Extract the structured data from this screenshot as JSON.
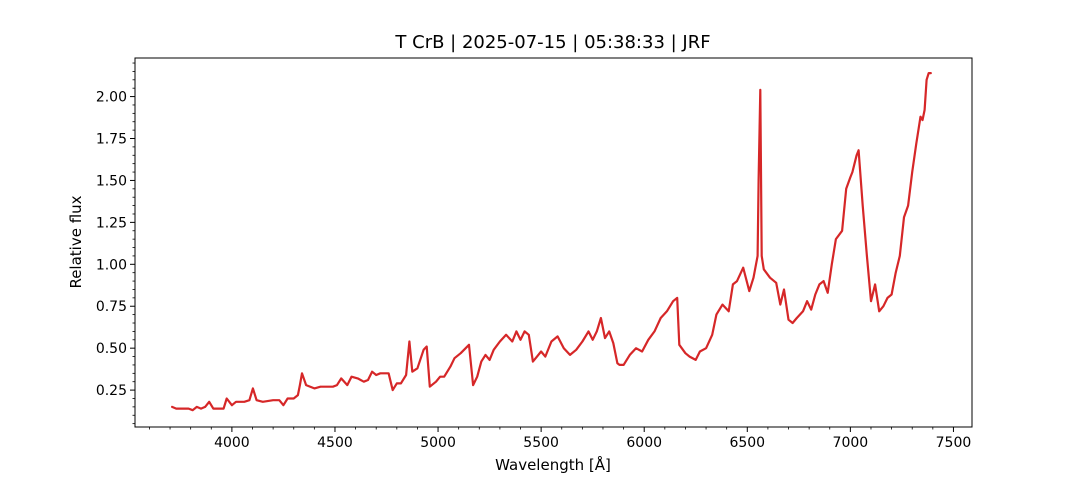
{
  "chart_data": {
    "type": "line",
    "title": "T CrB | 2025-07-15 | 05:38:33 | JRF",
    "xlabel": "Wavelength [Å]",
    "ylabel": "Relative flux",
    "xlim": [
      3530,
      7590
    ],
    "ylim": [
      0.03,
      2.23
    ],
    "x_ticks": [
      4000,
      4500,
      5000,
      5500,
      6000,
      6500,
      7000,
      7500
    ],
    "x_tick_labels": [
      "4000",
      "4500",
      "5000",
      "5500",
      "6000",
      "6500",
      "7000",
      "7500"
    ],
    "y_ticks": [
      0.25,
      0.5,
      0.75,
      1.0,
      1.25,
      1.5,
      1.75,
      2.0
    ],
    "y_tick_labels": [
      "0.25",
      "0.50",
      "0.75",
      "1.00",
      "1.25",
      "1.50",
      "1.75",
      "2.00"
    ],
    "grid": false,
    "series": [
      {
        "color": "#d62728",
        "x": [
          3710,
          3730,
          3760,
          3790,
          3810,
          3830,
          3850,
          3870,
          3890,
          3910,
          3940,
          3960,
          3975,
          4000,
          4020,
          4060,
          4085,
          4102,
          4120,
          4150,
          4200,
          4230,
          4250,
          4270,
          4300,
          4320,
          4330,
          4340,
          4360,
          4400,
          4430,
          4470,
          4490,
          4510,
          4530,
          4560,
          4580,
          4610,
          4640,
          4660,
          4680,
          4700,
          4720,
          4760,
          4780,
          4800,
          4820,
          4845,
          4861,
          4875,
          4900,
          4930,
          4945,
          4960,
          4990,
          5010,
          5030,
          5060,
          5080,
          5110,
          5150,
          5170,
          5190,
          5210,
          5230,
          5250,
          5270,
          5300,
          5330,
          5360,
          5380,
          5400,
          5420,
          5440,
          5460,
          5480,
          5500,
          5520,
          5550,
          5580,
          5610,
          5640,
          5670,
          5700,
          5730,
          5750,
          5770,
          5790,
          5810,
          5830,
          5850,
          5870,
          5880,
          5900,
          5930,
          5960,
          5990,
          6020,
          6050,
          6080,
          6110,
          6140,
          6160,
          6170,
          6200,
          6220,
          6250,
          6270,
          6300,
          6330,
          6350,
          6380,
          6410,
          6430,
          6450,
          6480,
          6510,
          6530,
          6550,
          6555,
          6563,
          6570,
          6580,
          6610,
          6640,
          6660,
          6678,
          6700,
          6720,
          6740,
          6770,
          6790,
          6810,
          6830,
          6850,
          6870,
          6890,
          6910,
          6930,
          6960,
          6980,
          7000,
          7010,
          7020,
          7030,
          7040,
          7060,
          7080,
          7100,
          7120,
          7140,
          7160,
          7180,
          7200,
          7220,
          7240,
          7260,
          7280,
          7300,
          7320,
          7340,
          7350,
          7360,
          7370,
          7380,
          7390
        ],
        "y": [
          0.15,
          0.14,
          0.14,
          0.14,
          0.13,
          0.15,
          0.14,
          0.15,
          0.18,
          0.14,
          0.14,
          0.14,
          0.2,
          0.16,
          0.18,
          0.18,
          0.19,
          0.26,
          0.19,
          0.18,
          0.19,
          0.19,
          0.16,
          0.2,
          0.2,
          0.22,
          0.28,
          0.35,
          0.28,
          0.26,
          0.27,
          0.27,
          0.27,
          0.28,
          0.32,
          0.28,
          0.33,
          0.32,
          0.3,
          0.31,
          0.36,
          0.34,
          0.35,
          0.35,
          0.25,
          0.29,
          0.29,
          0.34,
          0.54,
          0.36,
          0.38,
          0.49,
          0.51,
          0.27,
          0.3,
          0.33,
          0.33,
          0.39,
          0.44,
          0.47,
          0.52,
          0.28,
          0.33,
          0.42,
          0.46,
          0.43,
          0.49,
          0.54,
          0.58,
          0.54,
          0.6,
          0.55,
          0.6,
          0.58,
          0.42,
          0.45,
          0.48,
          0.45,
          0.54,
          0.57,
          0.5,
          0.46,
          0.49,
          0.54,
          0.6,
          0.55,
          0.6,
          0.68,
          0.56,
          0.6,
          0.53,
          0.41,
          0.4,
          0.4,
          0.46,
          0.5,
          0.48,
          0.55,
          0.6,
          0.68,
          0.72,
          0.78,
          0.8,
          0.52,
          0.47,
          0.45,
          0.43,
          0.48,
          0.5,
          0.58,
          0.7,
          0.76,
          0.72,
          0.88,
          0.9,
          0.98,
          0.84,
          0.92,
          1.05,
          1.5,
          2.04,
          1.05,
          0.97,
          0.92,
          0.89,
          0.76,
          0.85,
          0.67,
          0.65,
          0.68,
          0.72,
          0.78,
          0.73,
          0.82,
          0.88,
          0.9,
          0.83,
          1.0,
          1.15,
          1.2,
          1.45,
          1.52,
          1.55,
          1.6,
          1.65,
          1.68,
          1.35,
          1.05,
          0.78,
          0.88,
          0.72,
          0.75,
          0.8,
          0.82,
          0.95,
          1.05,
          1.28,
          1.35,
          1.55,
          1.72,
          1.88,
          1.86,
          1.92,
          2.1,
          2.14,
          2.14
        ]
      }
    ]
  }
}
